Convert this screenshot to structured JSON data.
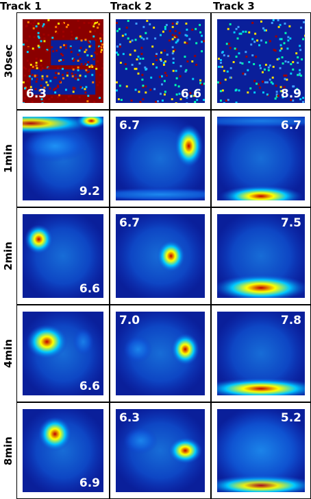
{
  "tracks": [
    "Track 1",
    "Track 2",
    "Track 3"
  ],
  "rows": [
    {
      "label": "30sec",
      "values": [
        "6.3",
        "6.6",
        "8.9"
      ],
      "corners": [
        "bl",
        "br",
        "br"
      ]
    },
    {
      "label": "1min",
      "values": [
        "9.2",
        "6.7",
        "6.7"
      ],
      "corners": [
        "br",
        "tl",
        "tr"
      ]
    },
    {
      "label": "2min",
      "values": [
        "6.6",
        "6.7",
        "7.5"
      ],
      "corners": [
        "br",
        "tl",
        "tr"
      ]
    },
    {
      "label": "4min",
      "values": [
        "6.6",
        "7.0",
        "7.8"
      ],
      "corners": [
        "br",
        "tl",
        "tr"
      ]
    },
    {
      "label": "8min",
      "values": [
        "6.9",
        "6.3",
        "5.2"
      ],
      "corners": [
        "br",
        "tl",
        "tr"
      ]
    }
  ],
  "colors": {
    "background": "#0a1f9a",
    "peak": "#c00000",
    "mid": "#ffff00",
    "low": "#00c8ff"
  }
}
